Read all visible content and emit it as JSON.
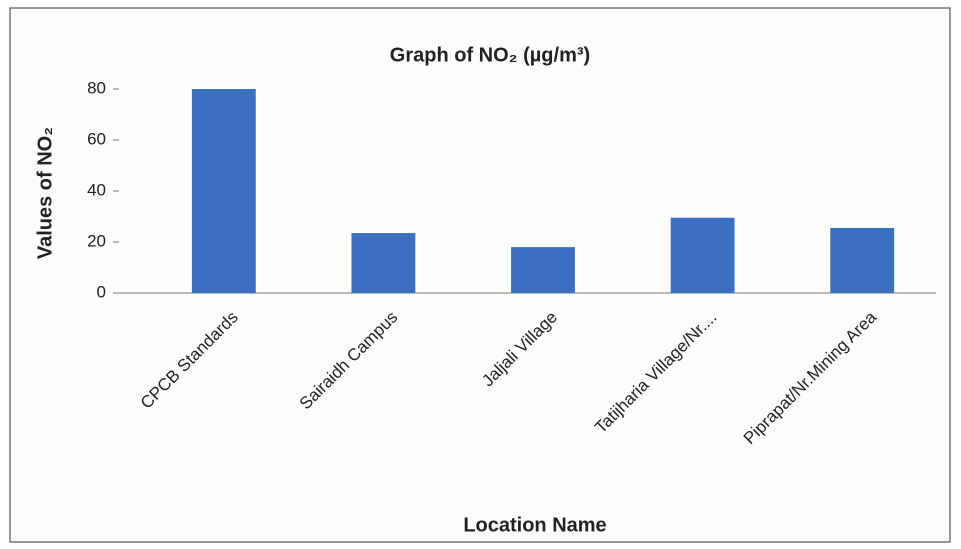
{
  "chart_data": {
    "type": "bar",
    "title": "Graph of NO₂ (µg/m³)",
    "y_label": "Values of NO₂",
    "x_label": "Location Name",
    "categories": [
      "CPCB Standards",
      "Sairaidh Campus",
      "Jaljali Village",
      "Tatijharia Village/Nr....",
      "Piprapat/Nr.Mining Area"
    ],
    "values": [
      80,
      23.5,
      18,
      29.5,
      25.5
    ],
    "color": "#3b6fc2",
    "ylim": [
      0,
      80
    ],
    "yticks": [
      0,
      20,
      40,
      60,
      80
    ],
    "grid": false
  }
}
